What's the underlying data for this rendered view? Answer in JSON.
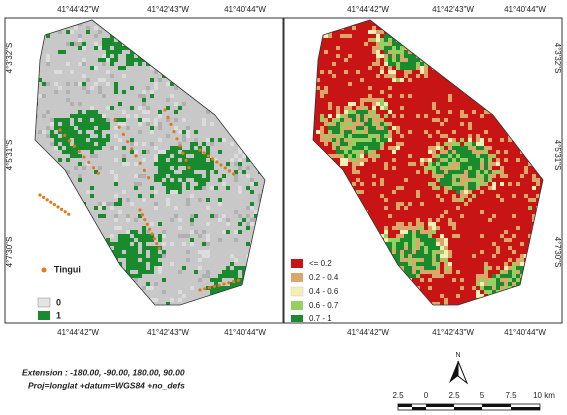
{
  "graticule": {
    "lon": [
      "41°44'42\"W",
      "41°42'43\"W",
      "41°40'44\"W"
    ],
    "lat": [
      "4°3'32\"S",
      "4°5'31\"S",
      "4°7'30\"S"
    ]
  },
  "left_panel": {
    "point_legend": "Tingui",
    "legend": [
      "0",
      "1"
    ]
  },
  "right_panel": {
    "legend": [
      "<= 0.2",
      "0.2 - 0.4",
      "0.4 - 0.6",
      "0.6 - 0.7",
      "0.7 - 1"
    ]
  },
  "footer": {
    "extension": "Extension : -180.00, -90.00, 180.00, 90.00",
    "projection": "Proj=longlat +datum=WGS84 +no_defs"
  },
  "north_arrow": "N",
  "scale_bar": [
    "2.5",
    "0",
    "2.5",
    "5",
    "7.5",
    "10 km"
  ]
}
